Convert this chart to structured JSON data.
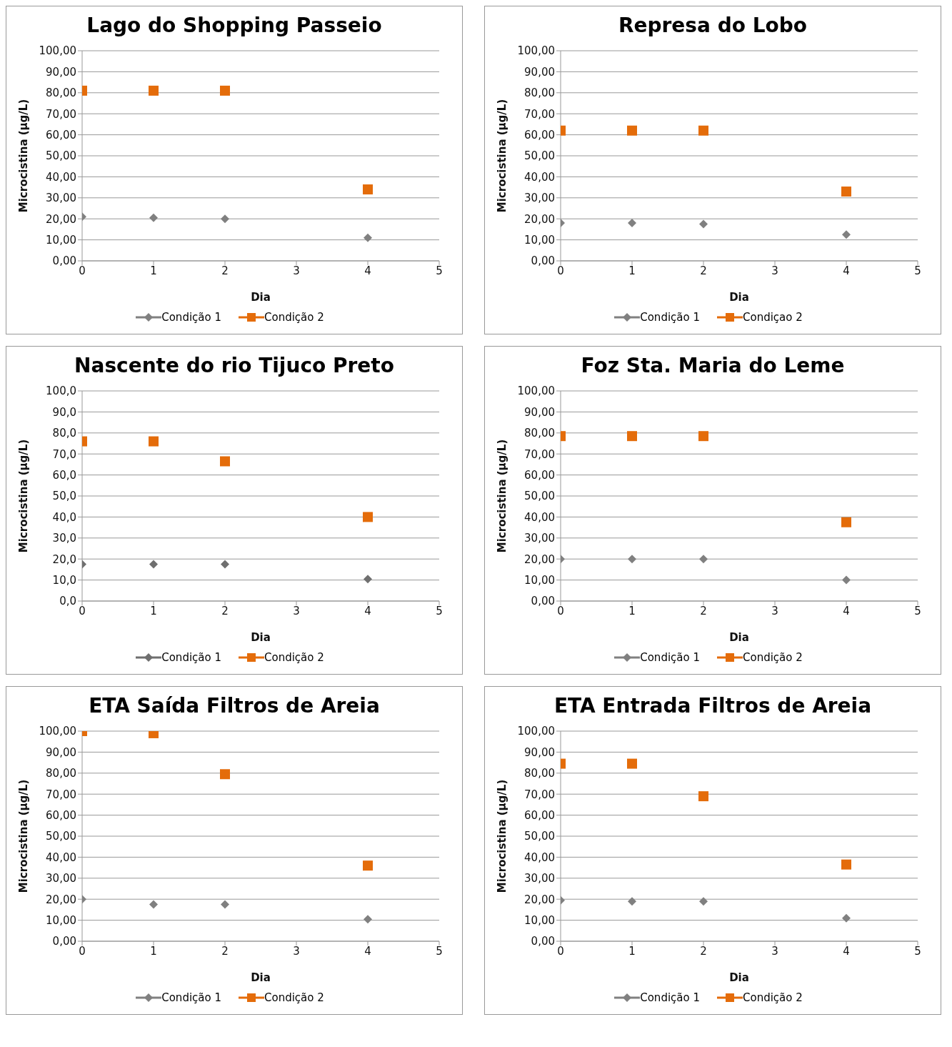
{
  "chart_data": [
    {
      "type": "scatter",
      "title": "Lago do Shopping Passeio",
      "xlabel": "Dia",
      "ylabel": "Microcistina (µg/L)",
      "x": [
        0,
        1,
        2,
        4
      ],
      "xlim": [
        0,
        5
      ],
      "xticks": [
        0,
        1,
        2,
        3,
        4,
        5
      ],
      "ylim": [
        0,
        100
      ],
      "yticks": [
        {
          "value": 0,
          "label": "0,00"
        },
        {
          "value": 10,
          "label": "10,00"
        },
        {
          "value": 20,
          "label": "20,00"
        },
        {
          "value": 30,
          "label": "30,00"
        },
        {
          "value": 40,
          "label": "40,00"
        },
        {
          "value": 50,
          "label": "50,00"
        },
        {
          "value": 60,
          "label": "60,00"
        },
        {
          "value": 70,
          "label": "70,00"
        },
        {
          "value": 80,
          "label": "80,00"
        },
        {
          "value": 90,
          "label": "90,00"
        },
        {
          "value": 100,
          "label": "100,00"
        }
      ],
      "grid": "y",
      "legend": "bottom",
      "series": [
        {
          "name": "Condição 1",
          "color": "#808080",
          "marker": "diamond",
          "values": [
            21,
            20.5,
            20,
            11
          ]
        },
        {
          "name": "Condição 2",
          "color": "#e46c0a",
          "marker": "square",
          "values": [
            81,
            81,
            81,
            34
          ]
        }
      ]
    },
    {
      "type": "scatter",
      "title": "Represa do Lobo",
      "xlabel": "Dia",
      "ylabel": "Microcistina (µg/L)",
      "x": [
        0,
        1,
        2,
        4
      ],
      "xlim": [
        0,
        5
      ],
      "xticks": [
        0,
        1,
        2,
        3,
        4,
        5
      ],
      "ylim": [
        0,
        100
      ],
      "yticks": [
        {
          "value": 0,
          "label": "0,00"
        },
        {
          "value": 10,
          "label": "10,00"
        },
        {
          "value": 20,
          "label": "20,00"
        },
        {
          "value": 30,
          "label": "30,00"
        },
        {
          "value": 40,
          "label": "40,00"
        },
        {
          "value": 50,
          "label": "50,00"
        },
        {
          "value": 60,
          "label": "60,00"
        },
        {
          "value": 70,
          "label": "70,00"
        },
        {
          "value": 80,
          "label": "80,00"
        },
        {
          "value": 90,
          "label": "90,00"
        },
        {
          "value": 100,
          "label": "100,00"
        }
      ],
      "grid": "y",
      "legend": "bottom",
      "series": [
        {
          "name": "Condição 1",
          "color": "#808080",
          "marker": "diamond",
          "values": [
            18,
            18,
            17.5,
            12.5
          ]
        },
        {
          "name": "Condiçao 2",
          "color": "#e46c0a",
          "marker": "square",
          "values": [
            62,
            62,
            62,
            33
          ]
        }
      ]
    },
    {
      "type": "scatter",
      "title": "Nascente do rio Tijuco Preto",
      "xlabel": "Dia",
      "ylabel": "Microcistina (µg/L)",
      "x": [
        0,
        1,
        2,
        4
      ],
      "xlim": [
        0,
        5
      ],
      "xticks": [
        0,
        1,
        2,
        3,
        4,
        5
      ],
      "ylim": [
        0,
        100
      ],
      "yticks": [
        {
          "value": 0,
          "label": "0,0"
        },
        {
          "value": 10,
          "label": "10,0"
        },
        {
          "value": 20,
          "label": "20,0"
        },
        {
          "value": 30,
          "label": "30,0"
        },
        {
          "value": 40,
          "label": "40,0"
        },
        {
          "value": 50,
          "label": "50,0"
        },
        {
          "value": 60,
          "label": "60,0"
        },
        {
          "value": 70,
          "label": "70,0"
        },
        {
          "value": 80,
          "label": "80,0"
        },
        {
          "value": 90,
          "label": "90,0"
        },
        {
          "value": 100,
          "label": "100,0"
        }
      ],
      "grid": "y",
      "legend": "bottom",
      "series": [
        {
          "name": "Condição 1",
          "color": "#6f6f6f",
          "marker": "diamond",
          "values": [
            17.5,
            17.5,
            17.5,
            10.5
          ]
        },
        {
          "name": "Condição 2",
          "color": "#e46c0a",
          "marker": "square",
          "values": [
            76,
            76,
            66.5,
            40
          ]
        }
      ]
    },
    {
      "type": "scatter",
      "title": "Foz Sta. Maria do Leme",
      "xlabel": "Dia",
      "ylabel": "Microcistina (µg/L)",
      "x": [
        0,
        1,
        2,
        4
      ],
      "xlim": [
        0,
        5
      ],
      "xticks": [
        0,
        1,
        2,
        3,
        4,
        5
      ],
      "ylim": [
        0,
        100
      ],
      "yticks": [
        {
          "value": 0,
          "label": "0,00"
        },
        {
          "value": 10,
          "label": "10,00"
        },
        {
          "value": 20,
          "label": "20,00"
        },
        {
          "value": 30,
          "label": "30,00"
        },
        {
          "value": 40,
          "label": "40,00"
        },
        {
          "value": 50,
          "label": "50,00"
        },
        {
          "value": 60,
          "label": "60,00"
        },
        {
          "value": 70,
          "label": "70,00"
        },
        {
          "value": 80,
          "label": "80,00"
        },
        {
          "value": 90,
          "label": "90,00"
        },
        {
          "value": 100,
          "label": "100,00"
        }
      ],
      "grid": "y",
      "legend": "bottom",
      "series": [
        {
          "name": "Condição 1",
          "color": "#808080",
          "marker": "diamond",
          "values": [
            20,
            20,
            20,
            10
          ]
        },
        {
          "name": "Condição 2",
          "color": "#e46c0a",
          "marker": "square",
          "values": [
            78.5,
            78.5,
            78.5,
            37.5
          ]
        }
      ]
    },
    {
      "type": "scatter",
      "title": "ETA Saída Filtros de Areia",
      "xlabel": "Dia",
      "ylabel": "Microcistina (µg/L)",
      "x": [
        0,
        1,
        2,
        4
      ],
      "xlim": [
        0,
        5
      ],
      "xticks": [
        0,
        1,
        2,
        3,
        4,
        5
      ],
      "ylim": [
        0,
        100
      ],
      "yticks": [
        {
          "value": 0,
          "label": "0,00"
        },
        {
          "value": 10,
          "label": "10,00"
        },
        {
          "value": 20,
          "label": "20,00"
        },
        {
          "value": 30,
          "label": "30,00"
        },
        {
          "value": 40,
          "label": "40,00"
        },
        {
          "value": 50,
          "label": "50,00"
        },
        {
          "value": 60,
          "label": "60,00"
        },
        {
          "value": 70,
          "label": "70,00"
        },
        {
          "value": 80,
          "label": "80,00"
        },
        {
          "value": 90,
          "label": "90,00"
        },
        {
          "value": 100,
          "label": "100,00"
        }
      ],
      "grid": "y",
      "legend": "bottom",
      "series": [
        {
          "name": "Condição 1",
          "color": "#808080",
          "marker": "diamond",
          "values": [
            20,
            17.5,
            17.5,
            10.5
          ]
        },
        {
          "name": "Condição 2",
          "color": "#e46c0a",
          "marker": "square",
          "values": [
            100,
            99,
            79.5,
            36
          ]
        }
      ]
    },
    {
      "type": "scatter",
      "title": "ETA Entrada Filtros de Areia",
      "xlabel": "Dia",
      "ylabel": "Microcistina (µg/L)",
      "x": [
        0,
        1,
        2,
        4
      ],
      "xlim": [
        0,
        5
      ],
      "xticks": [
        0,
        1,
        2,
        3,
        4,
        5
      ],
      "ylim": [
        0,
        100
      ],
      "yticks": [
        {
          "value": 0,
          "label": "0,00"
        },
        {
          "value": 10,
          "label": "10,00"
        },
        {
          "value": 20,
          "label": "20,00"
        },
        {
          "value": 30,
          "label": "30,00"
        },
        {
          "value": 40,
          "label": "40,00"
        },
        {
          "value": 50,
          "label": "50,00"
        },
        {
          "value": 60,
          "label": "60,00"
        },
        {
          "value": 70,
          "label": "70,00"
        },
        {
          "value": 80,
          "label": "80,00"
        },
        {
          "value": 90,
          "label": "90,00"
        },
        {
          "value": 100,
          "label": "100,00"
        }
      ],
      "grid": "y",
      "legend": "bottom",
      "series": [
        {
          "name": "Condição 1",
          "color": "#808080",
          "marker": "diamond",
          "values": [
            19.5,
            19,
            19,
            11
          ]
        },
        {
          "name": "Condição 2",
          "color": "#e46c0a",
          "marker": "square",
          "values": [
            84.5,
            84.5,
            69,
            36.5
          ]
        }
      ]
    }
  ]
}
